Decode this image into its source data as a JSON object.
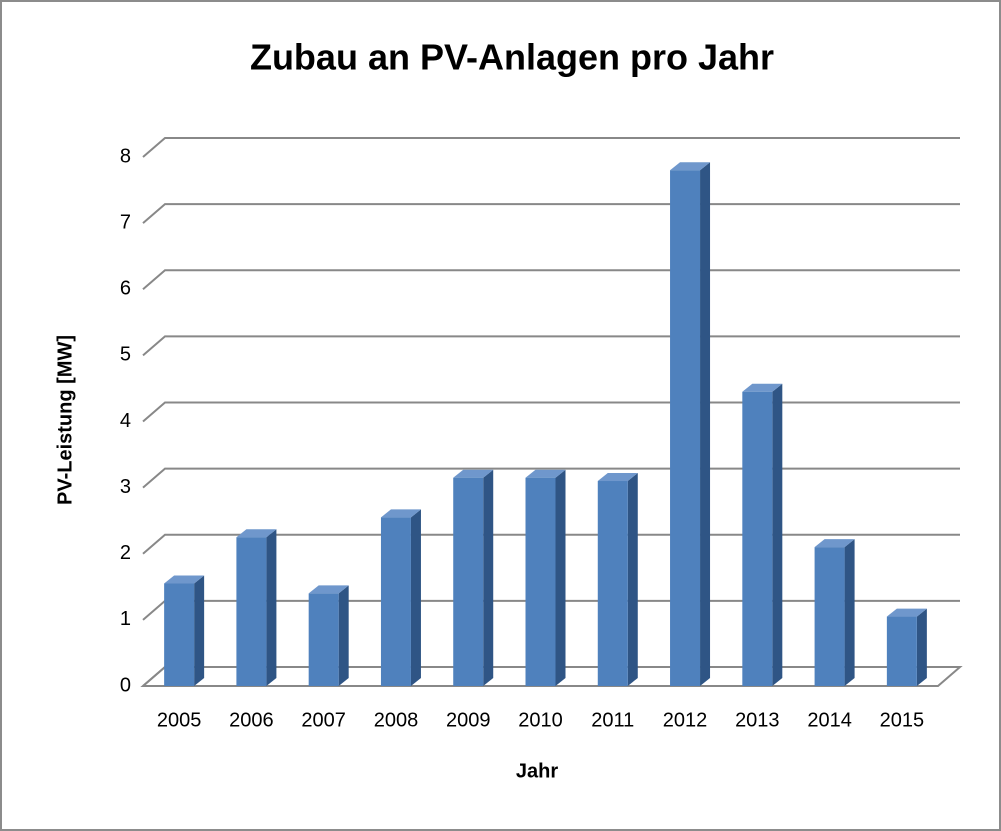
{
  "chart_data": {
    "type": "bar3d",
    "title": "Zubau an PV-Anlagen pro Jahr",
    "x_label": "Jahr",
    "y_label": "PV-Leistung [MW]",
    "categories": [
      "2005",
      "2006",
      "2007",
      "2008",
      "2009",
      "2010",
      "2011",
      "2012",
      "2013",
      "2014",
      "2015"
    ],
    "values": [
      1.55,
      2.25,
      1.4,
      2.55,
      3.15,
      3.15,
      3.1,
      7.8,
      4.45,
      2.1,
      1.05
    ],
    "color": "#4f81bd",
    "ylim": [
      0,
      8
    ],
    "yticks": [
      0,
      1,
      2,
      3,
      4,
      5,
      6,
      7,
      8
    ],
    "grid": true
  }
}
